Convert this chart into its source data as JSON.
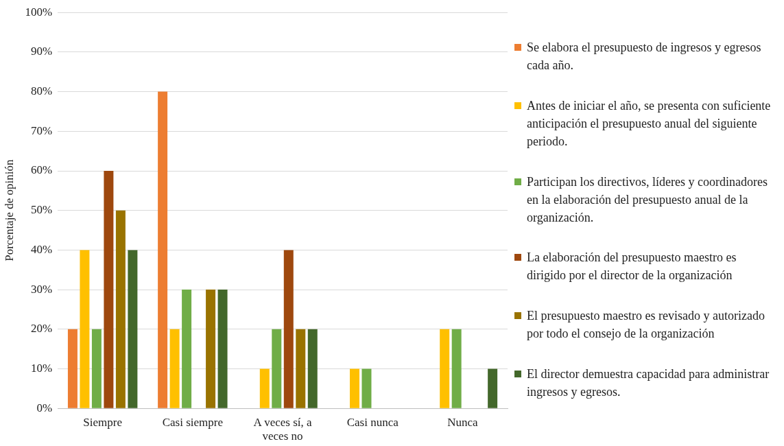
{
  "chart_data": {
    "type": "bar",
    "ylabel": "Porcentaje de opinión",
    "categories": [
      "Siempre",
      "Casi siempre",
      "A veces sí, a veces no",
      "Casi nunca",
      "Nunca"
    ],
    "series": [
      {
        "name": "Se elabora el presupuesto de ingresos y egresos cada año.",
        "color": "#ed7d31",
        "values": [
          20,
          80,
          0,
          0,
          0
        ]
      },
      {
        "name": "Antes de iniciar el año, se presenta con suficiente anticipación el presupuesto anual del siguiente periodo.",
        "color": "#ffc000",
        "values": [
          40,
          20,
          10,
          10,
          20
        ]
      },
      {
        "name": "Participan los directivos, líderes y coordinadores en la elaboración del presupuesto anual de la organización.",
        "color": "#70ad47",
        "values": [
          20,
          30,
          20,
          10,
          20
        ]
      },
      {
        "name": "La elaboración del presupuesto maestro es dirigido por el director de la organización",
        "color": "#9e480e",
        "values": [
          60,
          0,
          40,
          0,
          0
        ]
      },
      {
        "name": "El presupuesto maestro es revisado y autorizado por todo el consejo de la organización",
        "color": "#997300",
        "values": [
          50,
          30,
          20,
          0,
          0
        ]
      },
      {
        "name": "El director demuestra capacidad para administrar ingresos y egresos.",
        "color": "#43682b",
        "values": [
          40,
          30,
          20,
          0,
          10
        ]
      }
    ],
    "ylim": [
      0,
      100
    ],
    "yticks": [
      {
        "value": 0,
        "label": "0%"
      },
      {
        "value": 10,
        "label": "10%"
      },
      {
        "value": 20,
        "label": "20%"
      },
      {
        "value": 30,
        "label": "30%"
      },
      {
        "value": 40,
        "label": "40%"
      },
      {
        "value": 50,
        "label": "50%"
      },
      {
        "value": 60,
        "label": "60%"
      },
      {
        "value": 70,
        "label": "70%"
      },
      {
        "value": 80,
        "label": "80%"
      },
      {
        "value": 90,
        "label": "90%"
      },
      {
        "value": 100,
        "label": "100%"
      }
    ],
    "grid": "y",
    "legend": "right"
  }
}
